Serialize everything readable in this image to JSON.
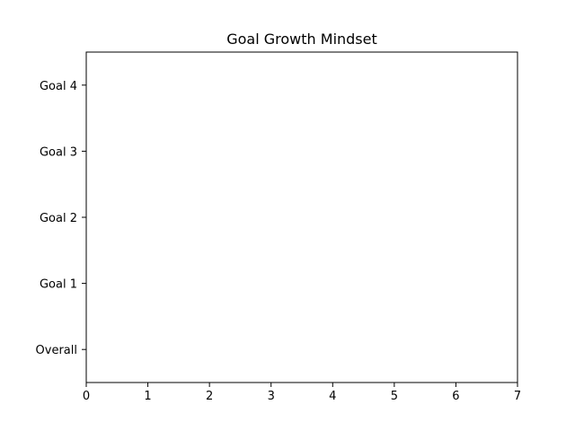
{
  "chart_data": {
    "type": "bar",
    "orientation": "horizontal",
    "title": "Goal Growth Mindset",
    "xlabel": "",
    "ylabel": "",
    "categories": [
      "Overall",
      "Goal 1",
      "Goal 2",
      "Goal 3",
      "Goal 4"
    ],
    "series": [],
    "xlim": [
      0,
      7
    ],
    "x_ticks": [
      "0",
      "1",
      "2",
      "3",
      "4",
      "5",
      "6",
      "7"
    ],
    "grid": false,
    "legend": "none"
  },
  "colors": {
    "axes": "#000000",
    "background": "#ffffff"
  }
}
